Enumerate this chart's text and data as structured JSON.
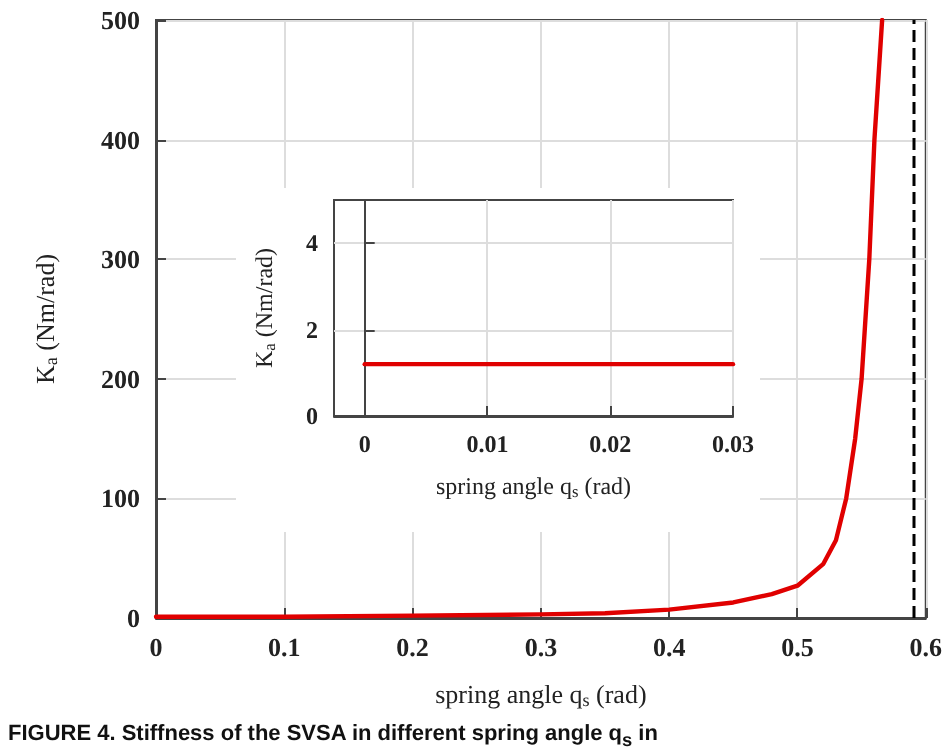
{
  "chart_data": [
    {
      "type": "line",
      "xlabel": "spring angle q$_{s}$ (rad)",
      "ylabel": "K$_{a}$ (Nm/rad)",
      "x": [
        0,
        0.1,
        0.2,
        0.3,
        0.35,
        0.4,
        0.45,
        0.48,
        0.5,
        0.52,
        0.53,
        0.538,
        0.545,
        0.55,
        0.556,
        0.56,
        0.566
      ],
      "series": [
        {
          "color": "#e00000",
          "values": [
            1,
            1,
            2,
            3,
            4,
            7,
            13,
            20,
            27,
            45,
            65,
            100,
            150,
            200,
            300,
            400,
            500
          ]
        }
      ],
      "xlim": [
        0,
        0.6
      ],
      "xticks": [
        0,
        0.1,
        0.2,
        0.3,
        0.4,
        0.5,
        0.6
      ],
      "ylim": [
        0,
        500
      ],
      "yticks": [
        0,
        100,
        200,
        300,
        400,
        500
      ],
      "grid": true,
      "marker": "none",
      "line_style": "solid",
      "ref_lines": [
        {
          "axis": "x",
          "value": 0.59,
          "color": "#000000",
          "line_style": "dashed"
        }
      ],
      "annotations": [
        "FIGURE 4.  Stiffness of the SVSA in different spring angle q$_{s}$ in"
      ]
    },
    {
      "type": "line",
      "xlabel": "spring angle q$_{s}$ (rad)",
      "ylabel": "K$_{a}$ (Nm/rad)",
      "x": [
        0,
        0.03
      ],
      "series": [
        {
          "color": "#e00000",
          "values": [
            1.2,
            1.2
          ]
        }
      ],
      "xlim": [
        -0.0025,
        0.03
      ],
      "xticks": [
        0,
        0.01,
        0.02,
        0.03
      ],
      "ylim": [
        0,
        5
      ],
      "yticks": [
        0,
        2,
        4
      ],
      "grid": true,
      "marker": "none",
      "line_style": "solid"
    }
  ]
}
